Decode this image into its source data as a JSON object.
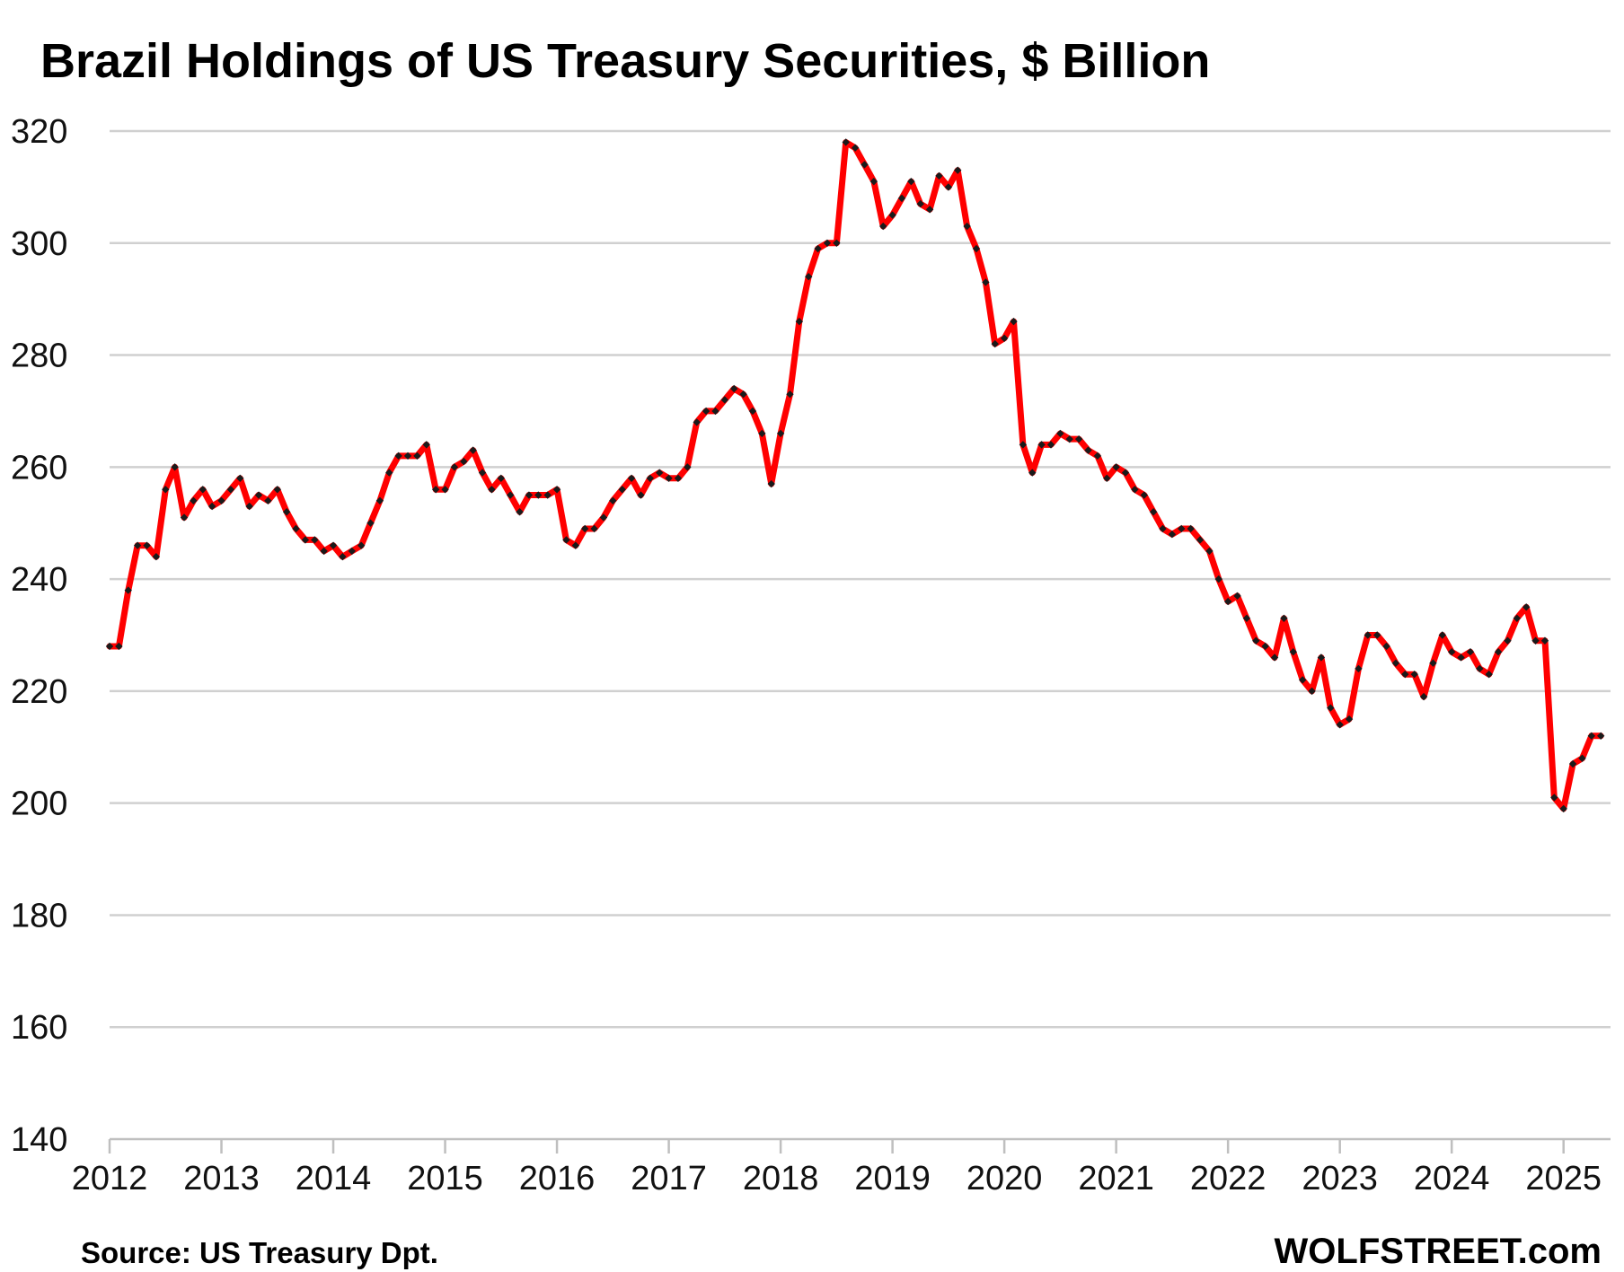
{
  "chart_data": {
    "type": "line",
    "title": "Brazil Holdings of US Treasury Securities, $ Billion",
    "source": "Source: US Treasury  Dpt.",
    "brand": "WOLFSTREET.com",
    "xlabel": "",
    "ylabel": "",
    "ylim": [
      140,
      320
    ],
    "yticks": [
      140,
      160,
      180,
      200,
      220,
      240,
      260,
      280,
      300,
      320
    ],
    "xlim": [
      2012,
      2025.42
    ],
    "xticks": [
      "2012",
      "2013",
      "2014",
      "2015",
      "2016",
      "2017",
      "2018",
      "2019",
      "2020",
      "2021",
      "2022",
      "2023",
      "2024",
      "2025"
    ],
    "grid": true,
    "colors": {
      "line": "#ff0000",
      "marker": "#1a1a1a",
      "grid": "#d0d0d0"
    },
    "series": [
      {
        "name": "Brazil Holdings",
        "start_year": 2012,
        "start_month": 1,
        "values": [
          228,
          228,
          238,
          246,
          246,
          244,
          256,
          260,
          251,
          254,
          256,
          253,
          254,
          256,
          258,
          253,
          255,
          254,
          256,
          252,
          249,
          247,
          247,
          245,
          246,
          244,
          245,
          246,
          250,
          254,
          259,
          262,
          262,
          262,
          264,
          256,
          256,
          260,
          261,
          263,
          259,
          256,
          258,
          255,
          252,
          255,
          255,
          255,
          256,
          247,
          246,
          249,
          249,
          251,
          254,
          256,
          258,
          255,
          258,
          259,
          258,
          258,
          260,
          268,
          270,
          270,
          272,
          274,
          273,
          270,
          266,
          257,
          266,
          273,
          286,
          294,
          299,
          300,
          300,
          318,
          317,
          314,
          311,
          303,
          305,
          308,
          311,
          307,
          306,
          312,
          310,
          313,
          303,
          299,
          293,
          282,
          283,
          286,
          264,
          259,
          264,
          264,
          266,
          265,
          265,
          263,
          262,
          258,
          260,
          259,
          256,
          255,
          252,
          249,
          248,
          249,
          249,
          247,
          245,
          240,
          236,
          237,
          233,
          229,
          228,
          226,
          233,
          227,
          222,
          220,
          226,
          217,
          214,
          215,
          224,
          230,
          230,
          228,
          225,
          223,
          223,
          219,
          225,
          230,
          227,
          226,
          227,
          224,
          223,
          227,
          229,
          233,
          235,
          229,
          229,
          201,
          199,
          207,
          208,
          212,
          212
        ]
      }
    ]
  }
}
